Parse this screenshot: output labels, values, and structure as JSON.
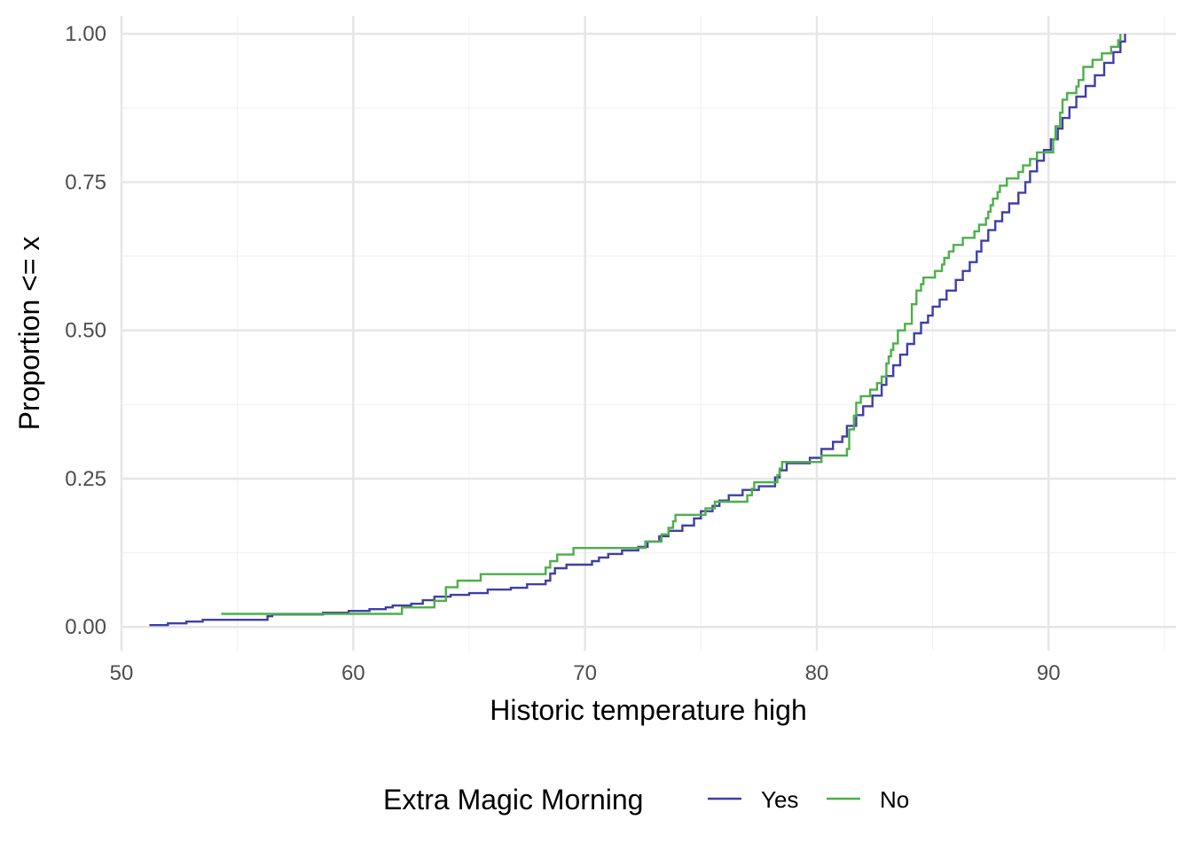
{
  "chart_data": {
    "type": "line",
    "subtype": "ecdf-step",
    "xlabel": "Historic temperature high",
    "ylabel": "Proportion <= x",
    "xlim": [
      50,
      95.5
    ],
    "ylim": [
      -0.04,
      1.03
    ],
    "xticks": [
      50,
      60,
      70,
      80,
      90
    ],
    "yticks": [
      0.0,
      0.25,
      0.5,
      0.75,
      1.0
    ],
    "xtick_labels": [
      "50",
      "60",
      "70",
      "80",
      "90"
    ],
    "ytick_labels": [
      "0.00",
      "0.25",
      "0.50",
      "0.75",
      "1.00"
    ],
    "grid": true,
    "legend": {
      "title": "Extra Magic Morning",
      "position": "bottom",
      "entries": [
        "Yes",
        "No"
      ]
    },
    "series": [
      {
        "name": "Yes",
        "color": "#3f3fa6",
        "points": [
          [
            51.2,
            0.003
          ],
          [
            52.0,
            0.006
          ],
          [
            52.8,
            0.009
          ],
          [
            53.5,
            0.012
          ],
          [
            56.3,
            0.018
          ],
          [
            56.5,
            0.021
          ],
          [
            58.7,
            0.024
          ],
          [
            59.8,
            0.027
          ],
          [
            60.7,
            0.03
          ],
          [
            61.4,
            0.033
          ],
          [
            61.7,
            0.036
          ],
          [
            62.5,
            0.039
          ],
          [
            63.0,
            0.045
          ],
          [
            63.5,
            0.051
          ],
          [
            64.2,
            0.054
          ],
          [
            65.0,
            0.057
          ],
          [
            65.8,
            0.063
          ],
          [
            66.8,
            0.066
          ],
          [
            67.5,
            0.072
          ],
          [
            68.3,
            0.078
          ],
          [
            68.5,
            0.09
          ],
          [
            68.7,
            0.099
          ],
          [
            69.2,
            0.105
          ],
          [
            70.3,
            0.111
          ],
          [
            70.6,
            0.117
          ],
          [
            71.0,
            0.123
          ],
          [
            71.6,
            0.129
          ],
          [
            72.3,
            0.135
          ],
          [
            72.7,
            0.144
          ],
          [
            73.2,
            0.153
          ],
          [
            73.6,
            0.162
          ],
          [
            74.2,
            0.171
          ],
          [
            74.7,
            0.183
          ],
          [
            75.0,
            0.195
          ],
          [
            75.5,
            0.204
          ],
          [
            75.8,
            0.213
          ],
          [
            76.2,
            0.222
          ],
          [
            76.8,
            0.231
          ],
          [
            77.5,
            0.237
          ],
          [
            78.2,
            0.252
          ],
          [
            78.4,
            0.264
          ],
          [
            78.7,
            0.276
          ],
          [
            79.7,
            0.285
          ],
          [
            80.2,
            0.3
          ],
          [
            80.7,
            0.312
          ],
          [
            81.1,
            0.321
          ],
          [
            81.3,
            0.339
          ],
          [
            81.7,
            0.357
          ],
          [
            82.0,
            0.372
          ],
          [
            82.4,
            0.39
          ],
          [
            82.8,
            0.408
          ],
          [
            83.0,
            0.423
          ],
          [
            83.3,
            0.441
          ],
          [
            83.6,
            0.459
          ],
          [
            83.9,
            0.477
          ],
          [
            84.2,
            0.495
          ],
          [
            84.5,
            0.513
          ],
          [
            84.8,
            0.525
          ],
          [
            85.0,
            0.54
          ],
          [
            85.3,
            0.552
          ],
          [
            85.6,
            0.567
          ],
          [
            86.0,
            0.585
          ],
          [
            86.3,
            0.6
          ],
          [
            86.6,
            0.615
          ],
          [
            86.9,
            0.633
          ],
          [
            87.1,
            0.651
          ],
          [
            87.4,
            0.669
          ],
          [
            87.7,
            0.684
          ],
          [
            88.0,
            0.699
          ],
          [
            88.3,
            0.714
          ],
          [
            88.7,
            0.732
          ],
          [
            89.0,
            0.75
          ],
          [
            89.2,
            0.768
          ],
          [
            89.5,
            0.786
          ],
          [
            89.8,
            0.804
          ],
          [
            90.1,
            0.822
          ],
          [
            90.4,
            0.84
          ],
          [
            90.6,
            0.858
          ],
          [
            90.9,
            0.876
          ],
          [
            91.2,
            0.894
          ],
          [
            91.6,
            0.912
          ],
          [
            92.0,
            0.93
          ],
          [
            92.4,
            0.951
          ],
          [
            92.8,
            0.969
          ],
          [
            93.1,
            0.987
          ],
          [
            93.3,
            1.0
          ]
        ]
      },
      {
        "name": "No",
        "color": "#4daf4a",
        "points": [
          [
            54.3,
            0.022
          ],
          [
            62.1,
            0.033
          ],
          [
            63.5,
            0.044
          ],
          [
            64.0,
            0.067
          ],
          [
            64.5,
            0.078
          ],
          [
            65.5,
            0.089
          ],
          [
            68.3,
            0.1
          ],
          [
            68.5,
            0.111
          ],
          [
            68.8,
            0.122
          ],
          [
            69.5,
            0.133
          ],
          [
            72.6,
            0.144
          ],
          [
            73.3,
            0.156
          ],
          [
            73.6,
            0.167
          ],
          [
            73.8,
            0.178
          ],
          [
            73.9,
            0.189
          ],
          [
            75.2,
            0.2
          ],
          [
            75.6,
            0.211
          ],
          [
            77.0,
            0.222
          ],
          [
            77.2,
            0.233
          ],
          [
            77.3,
            0.244
          ],
          [
            78.3,
            0.256
          ],
          [
            78.4,
            0.267
          ],
          [
            78.5,
            0.278
          ],
          [
            80.2,
            0.289
          ],
          [
            81.3,
            0.3
          ],
          [
            81.4,
            0.333
          ],
          [
            81.6,
            0.356
          ],
          [
            81.7,
            0.378
          ],
          [
            81.9,
            0.389
          ],
          [
            82.3,
            0.4
          ],
          [
            82.6,
            0.411
          ],
          [
            82.8,
            0.422
          ],
          [
            83.0,
            0.444
          ],
          [
            83.1,
            0.456
          ],
          [
            83.2,
            0.467
          ],
          [
            83.3,
            0.478
          ],
          [
            83.5,
            0.5
          ],
          [
            83.8,
            0.511
          ],
          [
            84.1,
            0.544
          ],
          [
            84.3,
            0.556
          ],
          [
            84.3,
            0.567
          ],
          [
            84.5,
            0.578
          ],
          [
            84.6,
            0.589
          ],
          [
            85.1,
            0.6
          ],
          [
            85.4,
            0.611
          ],
          [
            85.5,
            0.622
          ],
          [
            85.7,
            0.633
          ],
          [
            85.9,
            0.644
          ],
          [
            86.3,
            0.656
          ],
          [
            86.8,
            0.667
          ],
          [
            87.0,
            0.678
          ],
          [
            87.3,
            0.689
          ],
          [
            87.4,
            0.7
          ],
          [
            87.5,
            0.711
          ],
          [
            87.6,
            0.722
          ],
          [
            87.8,
            0.733
          ],
          [
            87.9,
            0.744
          ],
          [
            88.2,
            0.756
          ],
          [
            88.7,
            0.767
          ],
          [
            88.9,
            0.778
          ],
          [
            89.2,
            0.789
          ],
          [
            89.5,
            0.8
          ],
          [
            90.2,
            0.822
          ],
          [
            90.3,
            0.844
          ],
          [
            90.5,
            0.867
          ],
          [
            90.6,
            0.889
          ],
          [
            90.8,
            0.9
          ],
          [
            91.2,
            0.911
          ],
          [
            91.3,
            0.922
          ],
          [
            91.5,
            0.944
          ],
          [
            91.9,
            0.956
          ],
          [
            92.3,
            0.967
          ],
          [
            92.7,
            0.978
          ],
          [
            93.0,
            0.989
          ],
          [
            93.1,
            1.0
          ]
        ]
      }
    ]
  }
}
